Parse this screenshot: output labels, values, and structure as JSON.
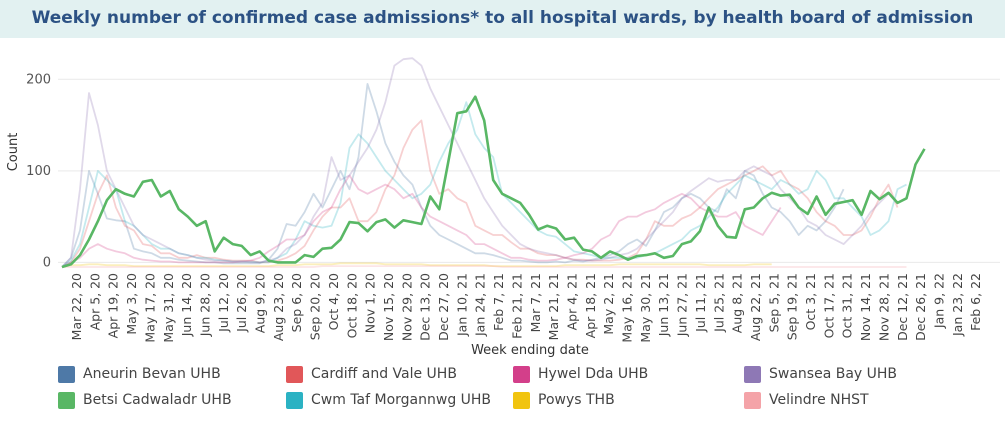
{
  "title": "Weekly number of confirmed case admissions* to all hospital wards, by health board of admission",
  "chart_data": {
    "type": "line",
    "ylabel": "Count",
    "xlabel": "Week ending date",
    "ylim": [
      -5,
      232
    ],
    "y_ticks": [
      0,
      100,
      200
    ],
    "grid": "horizontal",
    "legend_position": "bottom",
    "x_tick_labels": [
      "Mar 22, 20",
      "Apr 5, 20",
      "Apr 19, 20",
      "May 3, 20",
      "May 17, 20",
      "May 31, 20",
      "Jun 14, 20",
      "Jun 28, 20",
      "Jul 12, 20",
      "Jul 26, 20",
      "Aug 9, 20",
      "Aug 23, 20",
      "Sep 6, 20",
      "Sep 20, 20",
      "Oct 4, 20",
      "Oct 18, 20",
      "Nov 1, 20",
      "Nov 15, 20",
      "Nov 29, 20",
      "Dec 13, 20",
      "Dec 27, 20",
      "Jan 10, 21",
      "Jan 24, 21",
      "Feb 7, 21",
      "Feb 21, 21",
      "Mar 7, 21",
      "Mar 21, 21",
      "Apr 4, 21",
      "Apr 18, 21",
      "May 2, 21",
      "May 16, 21",
      "May 30, 21",
      "Jun 13, 21",
      "Jun 27, 21",
      "Jul 11, 21",
      "Jul 25, 21",
      "Aug 8, 21",
      "Aug 22, 21",
      "Sep 5, 21",
      "Sep 19, 21",
      "Oct 3, 21",
      "Oct 17, 21",
      "Oct 31, 21",
      "Nov 14, 21",
      "Nov 28, 21",
      "Dec 12, 21",
      "Dec 26, 21",
      "Jan 9, 22",
      "Jan 23, 22",
      "Feb 6, 22"
    ],
    "series": [
      {
        "name": "Aneurin Bevan UHB",
        "color": "#4e79a7",
        "values": [
          -5,
          5,
          35,
          100,
          75,
          48,
          46,
          45,
          15,
          12,
          10,
          5,
          5,
          3,
          2,
          1,
          0,
          0,
          -1,
          -1,
          -1,
          -1,
          -1,
          3,
          15,
          42,
          40,
          55,
          75,
          60,
          80,
          100,
          80,
          115,
          195,
          165,
          130,
          110,
          95,
          85,
          60,
          40,
          30,
          25,
          20,
          15,
          10,
          10,
          8,
          5,
          2,
          2,
          1,
          0,
          0,
          1,
          0,
          2,
          1,
          3,
          5,
          8,
          12,
          20,
          25,
          18,
          35,
          55,
          60,
          70,
          75,
          70,
          60,
          55,
          80,
          70,
          100,
          95,
          75,
          60,
          55,
          45,
          30,
          40,
          35,
          45,
          60,
          80
        ]
      },
      {
        "name": "Betsi Cadwaladr UHB",
        "color": "#59b765",
        "values": [
          -5,
          -2,
          8,
          25,
          45,
          68,
          80,
          75,
          72,
          88,
          90,
          72,
          78,
          58,
          50,
          40,
          45,
          12,
          27,
          20,
          18,
          8,
          12,
          2,
          0,
          0,
          0,
          8,
          6,
          15,
          16,
          25,
          44,
          43,
          34,
          44,
          47,
          38,
          46,
          44,
          42,
          72,
          58,
          110,
          163,
          165,
          181,
          155,
          90,
          75,
          70,
          65,
          52,
          36,
          40,
          37,
          25,
          27,
          14,
          12,
          5,
          12,
          8,
          3,
          7,
          8,
          10,
          5,
          7,
          20,
          23,
          34,
          60,
          40,
          28,
          27,
          58,
          60,
          70,
          76,
          73,
          74,
          60,
          53,
          72,
          52,
          64,
          66,
          68,
          52,
          78,
          69,
          76,
          65,
          70,
          107,
          124
        ]
      },
      {
        "name": "Cardiff and Vale UHB",
        "color": "#e15759",
        "values": [
          -5,
          0,
          15,
          45,
          75,
          95,
          60,
          40,
          35,
          20,
          18,
          10,
          10,
          5,
          5,
          8,
          5,
          5,
          3,
          2,
          2,
          2,
          0,
          0,
          2,
          5,
          10,
          18,
          35,
          50,
          60,
          60,
          70,
          45,
          45,
          55,
          80,
          95,
          125,
          145,
          155,
          100,
          75,
          80,
          70,
          65,
          40,
          35,
          30,
          30,
          22,
          15,
          15,
          10,
          8,
          8,
          5,
          3,
          3,
          2,
          2,
          2,
          3,
          5,
          10,
          25,
          45,
          40,
          40,
          48,
          52,
          60,
          70,
          80,
          85,
          90,
          95,
          100,
          105,
          95,
          100,
          85,
          80,
          70,
          55,
          45,
          40,
          30,
          30,
          35,
          50,
          70,
          85,
          60
        ]
      },
      {
        "name": "Cwm Taf Morgannwg UHB",
        "color": "#2bb2c3",
        "values": [
          -5,
          2,
          20,
          60,
          100,
          90,
          80,
          45,
          40,
          30,
          20,
          15,
          15,
          10,
          8,
          5,
          5,
          3,
          2,
          1,
          1,
          1,
          0,
          0,
          5,
          10,
          25,
          45,
          40,
          38,
          40,
          65,
          125,
          140,
          130,
          115,
          100,
          90,
          80,
          70,
          75,
          85,
          110,
          130,
          145,
          175,
          140,
          125,
          115,
          75,
          65,
          55,
          45,
          35,
          30,
          28,
          20,
          12,
          10,
          8,
          5,
          5,
          5,
          5,
          5,
          8,
          10,
          15,
          20,
          25,
          35,
          40,
          50,
          60,
          75,
          85,
          95,
          90,
          85,
          80,
          90,
          85,
          75,
          80,
          100,
          90,
          70,
          70,
          60,
          50,
          30,
          35,
          45,
          80,
          85
        ]
      },
      {
        "name": "Hywel Dda UHB",
        "color": "#d33f8a",
        "values": [
          -5,
          0,
          5,
          15,
          20,
          15,
          12,
          10,
          5,
          3,
          2,
          1,
          1,
          0,
          0,
          0,
          0,
          0,
          0,
          0,
          1,
          2,
          5,
          12,
          18,
          25,
          25,
          30,
          45,
          55,
          60,
          80,
          95,
          80,
          75,
          80,
          85,
          80,
          70,
          75,
          60,
          50,
          45,
          40,
          35,
          30,
          20,
          20,
          15,
          10,
          5,
          5,
          3,
          2,
          2,
          3,
          5,
          8,
          10,
          15,
          25,
          30,
          45,
          50,
          50,
          55,
          58,
          65,
          70,
          75,
          70,
          60,
          55,
          50,
          50,
          55,
          40,
          35,
          30,
          45,
          60
        ]
      },
      {
        "name": "Powys THB",
        "color": "#f1c40f",
        "values": [
          -5,
          -3,
          -3,
          -2,
          -2,
          -3,
          -3,
          -3,
          -4,
          -4,
          -4,
          -4,
          -4,
          -4,
          -4,
          -4,
          -4,
          -4,
          -4,
          -4,
          -4,
          -4,
          -4,
          -4,
          -3,
          -3,
          -3,
          -2,
          -2,
          -2,
          -2,
          -1,
          -1,
          -1,
          -1,
          -1,
          -2,
          -2,
          -2,
          -2,
          -2,
          -3,
          -3,
          -3,
          -3,
          -3,
          -3,
          -3,
          -4,
          -4,
          -4,
          -4,
          -4,
          -4,
          -4,
          -4,
          -3,
          -3,
          -3,
          -3,
          -3,
          -3,
          -2,
          -2,
          -2,
          -2,
          -2,
          -2,
          -2,
          -2,
          -2,
          -2,
          -3,
          -3,
          -3,
          -3,
          -3,
          -2,
          -2,
          -2
        ]
      },
      {
        "name": "Swansea Bay UHB",
        "color": "#8e78b5",
        "values": [
          -5,
          5,
          80,
          185,
          150,
          100,
          80,
          60,
          40,
          30,
          25,
          20,
          15,
          10,
          8,
          5,
          3,
          2,
          2,
          1,
          1,
          0,
          0,
          2,
          5,
          15,
          20,
          30,
          50,
          65,
          115,
          90,
          95,
          110,
          125,
          145,
          175,
          215,
          222,
          223,
          215,
          190,
          170,
          150,
          130,
          110,
          90,
          70,
          55,
          40,
          30,
          20,
          15,
          12,
          10,
          8,
          5,
          3,
          2,
          2,
          3,
          5,
          8,
          10,
          15,
          25,
          35,
          45,
          55,
          70,
          78,
          85,
          92,
          88,
          90,
          90,
          100,
          105,
          100,
          95,
          80,
          70,
          60,
          45,
          40,
          30,
          25,
          20,
          30,
          40,
          55,
          65,
          75
        ]
      },
      {
        "name": "Velindre NHST",
        "color": "#f4a3a8",
        "values": [
          -5,
          -5,
          -5,
          -5,
          -5,
          -5,
          -5,
          -5,
          -5,
          -5,
          -5,
          -5,
          -5,
          -5,
          -5,
          -5,
          -5,
          -5,
          -5,
          -5,
          -5,
          -5,
          -5,
          -5,
          -5,
          -5,
          -5,
          -5,
          -5,
          -4,
          -4,
          -4,
          -4,
          -4,
          -4,
          -4,
          -4,
          -4,
          -4,
          -4,
          -4,
          -4,
          -4,
          -4,
          -4,
          -4,
          -4,
          -4,
          -4,
          -5,
          -5,
          -5,
          -5,
          -5,
          -5,
          -5,
          -5,
          -5,
          -5,
          -5,
          -5,
          -5,
          -5,
          -5,
          -5,
          -5,
          -5,
          -5,
          -5,
          -5,
          -5,
          -5,
          -5,
          -5,
          -5,
          -5,
          -5,
          -5,
          -5,
          -5,
          -5,
          -5,
          -5,
          -5,
          -5,
          -5,
          -5,
          -5,
          -5,
          -5,
          -5,
          -5,
          -5,
          -5,
          -5
        ]
      }
    ]
  },
  "legend": [
    {
      "name": "Aneurin Bevan UHB",
      "color": "#4e79a7"
    },
    {
      "name": "Cardiff and Vale UHB",
      "color": "#e15759"
    },
    {
      "name": "Hywel Dda UHB",
      "color": "#d33f8a"
    },
    {
      "name": "Swansea Bay UHB",
      "color": "#8e78b5"
    },
    {
      "name": "Betsi Cadwaladr UHB",
      "color": "#59b765"
    },
    {
      "name": "Cwm Taf Morgannwg UHB",
      "color": "#2bb2c3"
    },
    {
      "name": "Powys THB",
      "color": "#f1c40f"
    },
    {
      "name": "Velindre NHST",
      "color": "#f4a3a8"
    }
  ]
}
